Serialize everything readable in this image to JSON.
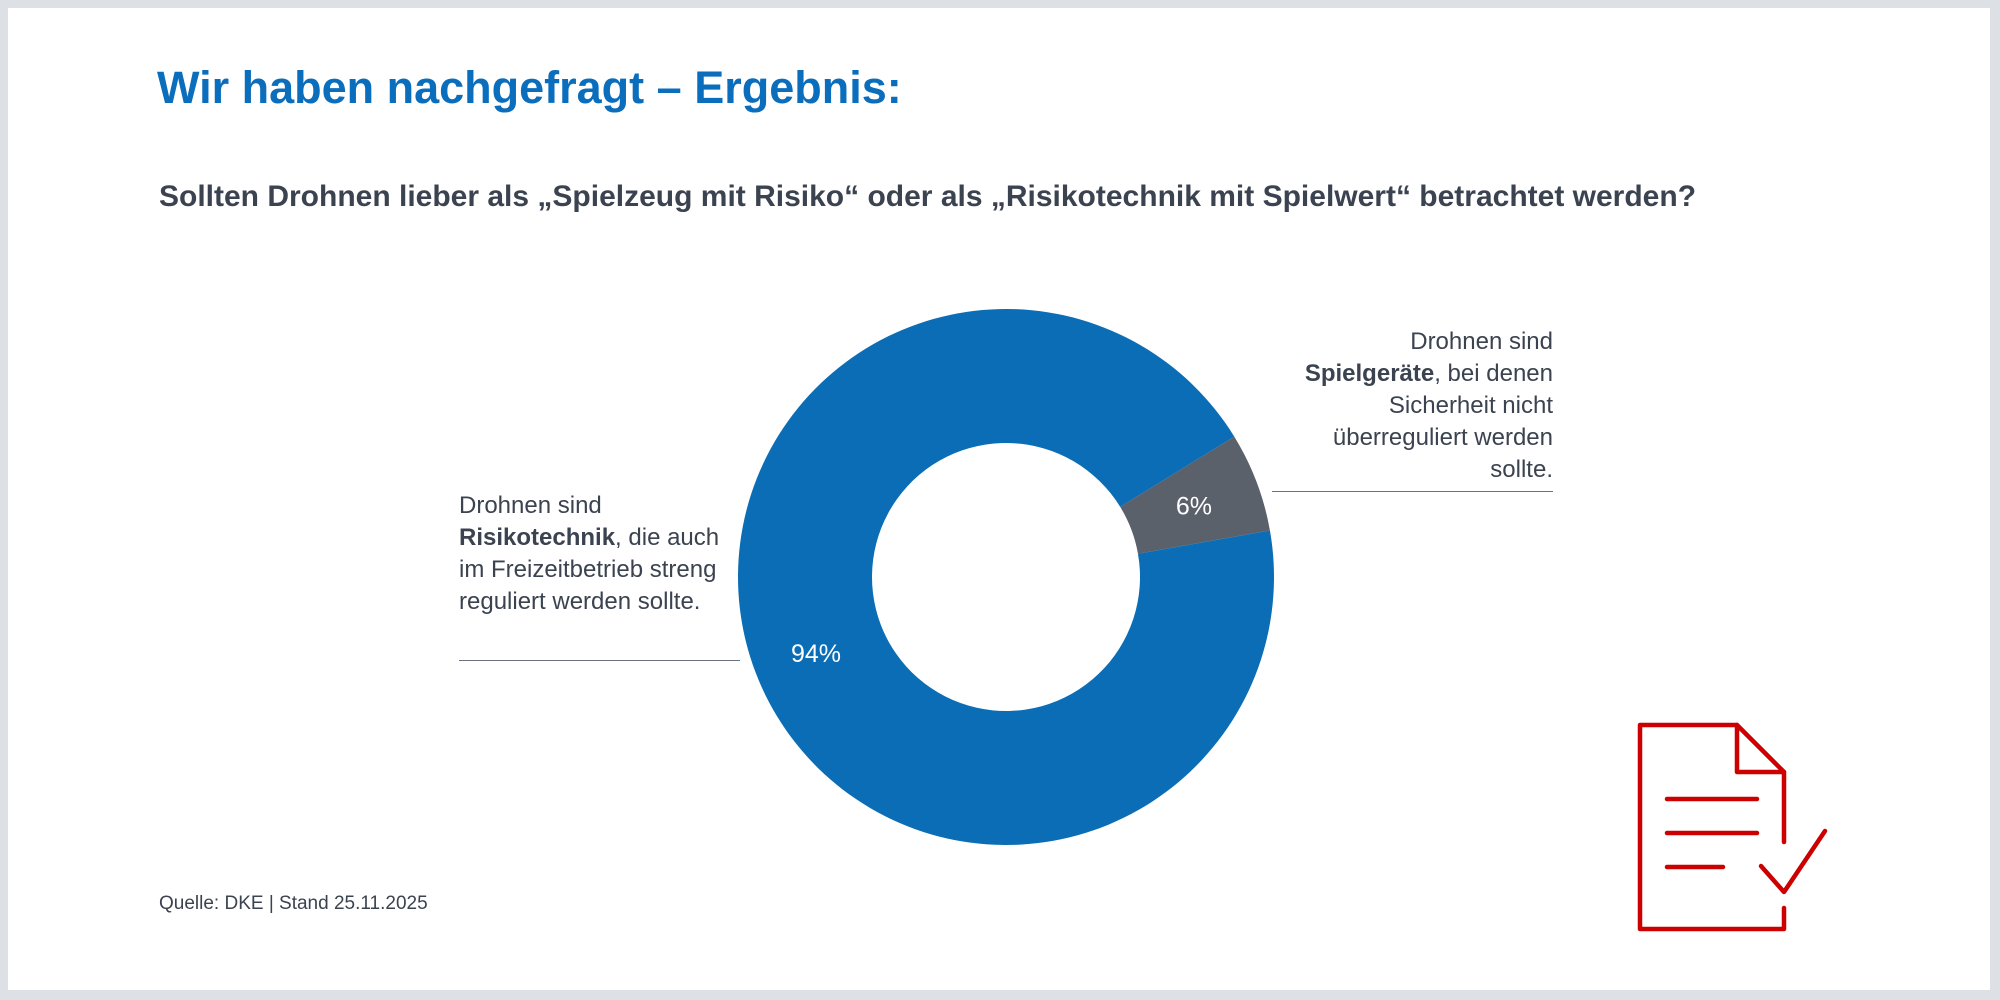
{
  "header": {
    "title": "Wir haben nachgefragt – Ergebnis:",
    "question": "Sollten Drohnen lieber als „Spielzeug mit Risiko“ oder als „Risikotechnik mit Spielwert“ betrachtet werden?"
  },
  "chart_data": {
    "type": "pie",
    "variant": "donut",
    "slices": [
      {
        "name": "Spielgeräte",
        "value": 6,
        "label": "6%",
        "color": "#5a616b",
        "annotation": {
          "pre": "Drohnen sind",
          "bold": "Spielgeräte",
          "post": ", bei denen Sicherheit nicht überreguliert werden sollte."
        }
      },
      {
        "name": "Risikotechnik",
        "value": 94,
        "label": "94%",
        "color": "#0a6db5",
        "annotation": {
          "pre": "Drohnen sind",
          "bold": "Risikotechnik",
          "post": ", die auch im Freizeitbetrieb streng reguliert werden sollte."
        }
      }
    ],
    "start_angle_deg": 58.4
  },
  "footer": {
    "source": "Quelle: DKE | Stand 25.11.2025"
  },
  "colors": {
    "accent": "#0a6ebd",
    "icon": "#cc0000"
  }
}
